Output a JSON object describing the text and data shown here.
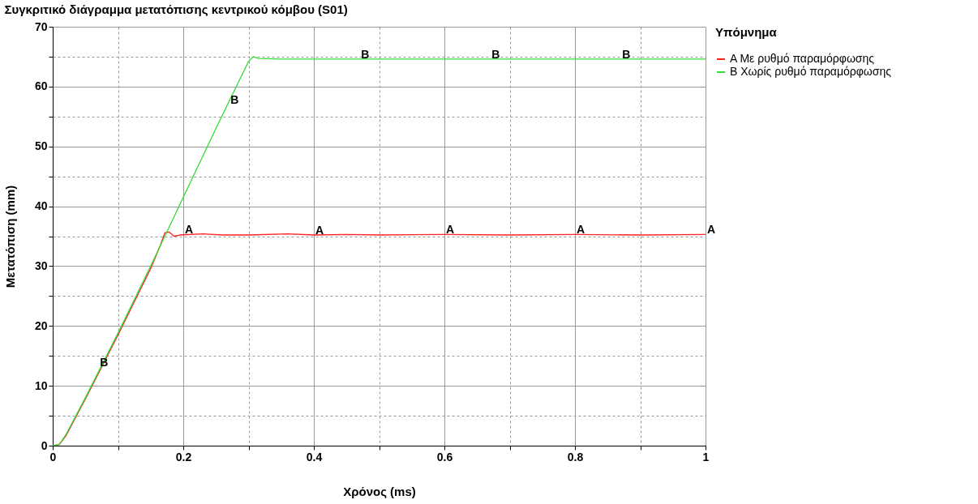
{
  "chart_data": {
    "type": "line",
    "title": "Συγκριτικό διάγραμμα μετατόπισης κεντρικού κόμβου (S01)",
    "xlabel": "Χρόνος (ms)",
    "ylabel": "Μετατόπιση (mm)",
    "legend_title": "Υπόμνημα",
    "legend": "top right",
    "grid": true,
    "marker": "none",
    "line_style": "solid",
    "xlim": [
      0,
      1
    ],
    "ylim": [
      0,
      70
    ],
    "xticks": [
      0,
      {
        "value": 0.1,
        "label": null
      },
      0.2,
      {
        "value": 0.3,
        "label": null
      },
      0.4,
      {
        "value": 0.5,
        "label": null
      },
      0.6,
      {
        "value": 0.7,
        "label": null
      },
      0.8,
      {
        "value": 0.9,
        "label": null
      },
      1
    ],
    "yticks": [
      0,
      {
        "value": 5,
        "label": null
      },
      10,
      {
        "value": 15,
        "label": null
      },
      20,
      {
        "value": 25,
        "label": null
      },
      30,
      {
        "value": 35,
        "label": null
      },
      40,
      {
        "value": 45,
        "label": null
      },
      50,
      {
        "value": 55,
        "label": null
      },
      60,
      {
        "value": 65,
        "label": null
      },
      70
    ],
    "series": [
      {
        "name": "A  Με ρυθμό παραμόρφωσης",
        "color": "#ff2020",
        "x": [
          0,
          0.01,
          0.02,
          0.05,
          0.1,
          0.15,
          0.165,
          0.172,
          0.178,
          0.186,
          0.195,
          0.23,
          0.26,
          0.3,
          0.36,
          0.4,
          0.45,
          0.5,
          0.6,
          0.7,
          0.8,
          0.9,
          1.0
        ],
        "values": [
          0,
          0.2,
          1.6,
          7.8,
          18.5,
          29.6,
          33.5,
          35.6,
          35.7,
          35.0,
          35.2,
          35.4,
          35.2,
          35.2,
          35.4,
          35.2,
          35.3,
          35.2,
          35.3,
          35.2,
          35.3,
          35.2,
          35.3
        ]
      },
      {
        "name": "B  Χωρίς ρυθμό παραμόρφωσης",
        "color": "#33dd33",
        "x": [
          0,
          0.01,
          0.02,
          0.05,
          0.1,
          0.15,
          0.2,
          0.25,
          0.3,
          0.307,
          0.315,
          0.35,
          0.5,
          0.7,
          1.0
        ],
        "values": [
          0,
          0.2,
          1.8,
          8.0,
          18.8,
          30,
          41.5,
          53,
          64.2,
          65.0,
          64.7,
          64.6,
          64.6,
          64.6,
          64.6
        ]
      }
    ],
    "annotations": [
      {
        "text": "A",
        "x": 0.2,
        "y": 35.3
      },
      {
        "text": "A",
        "x": 0.4,
        "y": 35.2
      },
      {
        "text": "A",
        "x": 0.6,
        "y": 35.3
      },
      {
        "text": "A",
        "x": 0.8,
        "y": 35.3
      },
      {
        "text": "A",
        "x": 1.0,
        "y": 35.3
      },
      {
        "text": "B",
        "x": 0.07,
        "y": 13.2
      },
      {
        "text": "B",
        "x": 0.27,
        "y": 57
      },
      {
        "text": "B",
        "x": 0.47,
        "y": 64.6
      },
      {
        "text": "B",
        "x": 0.67,
        "y": 64.6
      },
      {
        "text": "B",
        "x": 0.87,
        "y": 64.6
      }
    ]
  }
}
